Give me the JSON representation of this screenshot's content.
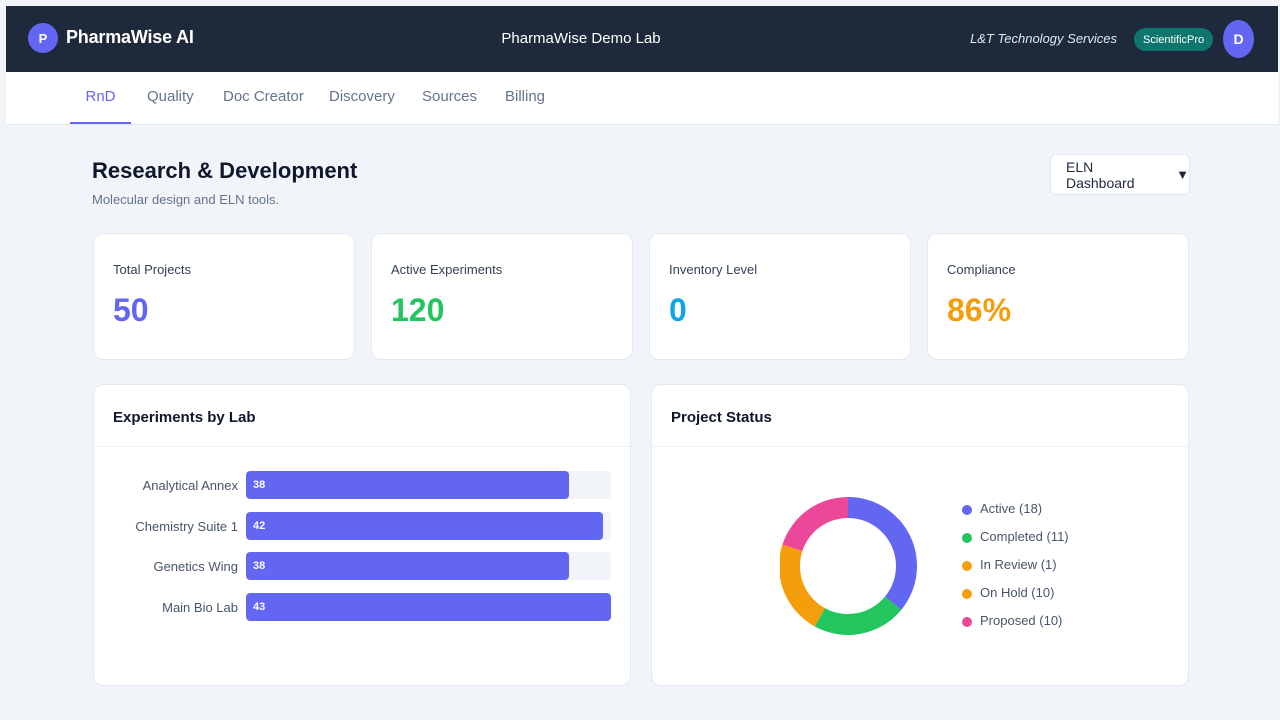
{
  "header": {
    "brand_initial": "P",
    "brand_name": "PharmaWise AI",
    "lab_name": "PharmaWise Demo Lab",
    "company": "L&T Technology Services",
    "plan_badge": "ScientificPro",
    "user_initial": "D"
  },
  "tabs": [
    {
      "label": "RnD",
      "active": true
    },
    {
      "label": "Quality",
      "active": false
    },
    {
      "label": "Doc Creator",
      "active": false
    },
    {
      "label": "Discovery",
      "active": false
    },
    {
      "label": "Sources",
      "active": false
    },
    {
      "label": "Billing",
      "active": false
    }
  ],
  "page": {
    "title": "Research & Development",
    "subtitle": "Molecular design and ELN tools.",
    "view_select": {
      "value": "ELN Dashboard",
      "caret_icon": "triangle-down-icon"
    }
  },
  "stats": [
    {
      "label": "Total Projects",
      "value": "50",
      "color": "#6366f1"
    },
    {
      "label": "Active Experiments",
      "value": "120",
      "color": "#22c55e"
    },
    {
      "label": "Inventory Level",
      "value": "0",
      "color": "#0ea5e9"
    },
    {
      "label": "Compliance",
      "value": "86%",
      "color": "#f59e0b"
    }
  ],
  "chart_data": [
    {
      "type": "bar",
      "orientation": "horizontal",
      "title": "Experiments by Lab",
      "categories": [
        "Analytical Annex",
        "Chemistry Suite 1",
        "Genetics Wing",
        "Main Bio Lab"
      ],
      "values": [
        38,
        42,
        38,
        43
      ],
      "xlim": [
        0,
        43
      ],
      "bar_color": "#6366f1"
    },
    {
      "type": "pie",
      "variant": "donut",
      "title": "Project Status",
      "legend_position": "right",
      "slices": [
        {
          "label": "Active (18)",
          "value": 18,
          "color": "#6366f1"
        },
        {
          "label": "Completed (11)",
          "value": 11,
          "color": "#22c55e"
        },
        {
          "label": "In Review (1)",
          "value": 1,
          "color": "#f59e0b"
        },
        {
          "label": "On Hold (10)",
          "value": 10,
          "color": "#f59e0b"
        },
        {
          "label": "Proposed (10)",
          "value": 10,
          "color": "#ec4899"
        }
      ]
    }
  ]
}
